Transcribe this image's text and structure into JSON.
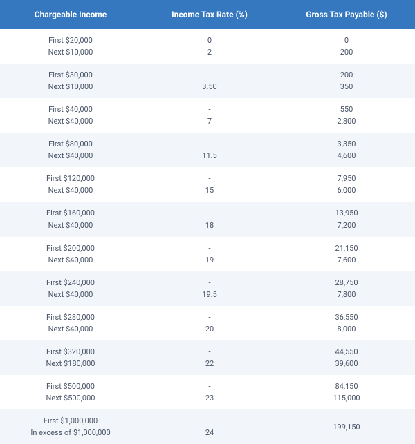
{
  "table": {
    "type": "table",
    "columns": [
      "Chargeable Income",
      "Income Tax Rate (%)",
      "Gross Tax Payable ($)"
    ],
    "rows": [
      {
        "income": [
          "First $20,000",
          "Next $10,000"
        ],
        "rate": [
          "0",
          "2"
        ],
        "gross": [
          "0",
          "200"
        ]
      },
      {
        "income": [
          "First $30,000",
          "Next $10,000"
        ],
        "rate": [
          "-",
          "3.50"
        ],
        "gross": [
          "200",
          "350"
        ]
      },
      {
        "income": [
          "First $40,000",
          "Next $40,000"
        ],
        "rate": [
          "-",
          "7"
        ],
        "gross": [
          "550",
          "2,800"
        ]
      },
      {
        "income": [
          "First $80,000",
          "Next $40,000"
        ],
        "rate": [
          "-",
          "11.5"
        ],
        "gross": [
          "3,350",
          "4,600"
        ]
      },
      {
        "income": [
          "First $120,000",
          "Next $40,000"
        ],
        "rate": [
          "-",
          "15"
        ],
        "gross": [
          "7,950",
          "6,000"
        ]
      },
      {
        "income": [
          "First $160,000",
          "Next $40,000"
        ],
        "rate": [
          "-",
          "18"
        ],
        "gross": [
          "13,950",
          "7,200"
        ]
      },
      {
        "income": [
          "First $200,000",
          "Next $40,000"
        ],
        "rate": [
          "-",
          "19"
        ],
        "gross": [
          "21,150",
          "7,600"
        ]
      },
      {
        "income": [
          "First $240,000",
          "Next $40,000"
        ],
        "rate": [
          "-",
          "19.5"
        ],
        "gross": [
          "28,750",
          "7,800"
        ]
      },
      {
        "income": [
          "First $280,000",
          "Next $40,000"
        ],
        "rate": [
          "-",
          "20"
        ],
        "gross": [
          "36,550",
          "8,000"
        ]
      },
      {
        "income": [
          "First $320,000",
          "Next $180,000"
        ],
        "rate": [
          "-",
          "22"
        ],
        "gross": [
          "44,550",
          "39,600"
        ]
      },
      {
        "income": [
          "First $500,000",
          "Next $500,000"
        ],
        "rate": [
          "-",
          "23"
        ],
        "gross": [
          "84,150",
          "115,000"
        ]
      },
      {
        "income": [
          "First $1,000,000",
          "In excess of $1,000,000"
        ],
        "rate": [
          "-",
          "24"
        ],
        "gross": [
          "199,150",
          ""
        ]
      }
    ],
    "style": {
      "header_bg": "#3578bf",
      "header_fg": "#ffffff",
      "row_even_bg": "#ffffff",
      "row_odd_bg": "#f2f5f9",
      "cell_fg": "#4a5568",
      "header_fontsize": 12,
      "cell_fontsize": 11,
      "col_widths_pct": [
        34,
        33,
        33
      ]
    }
  }
}
